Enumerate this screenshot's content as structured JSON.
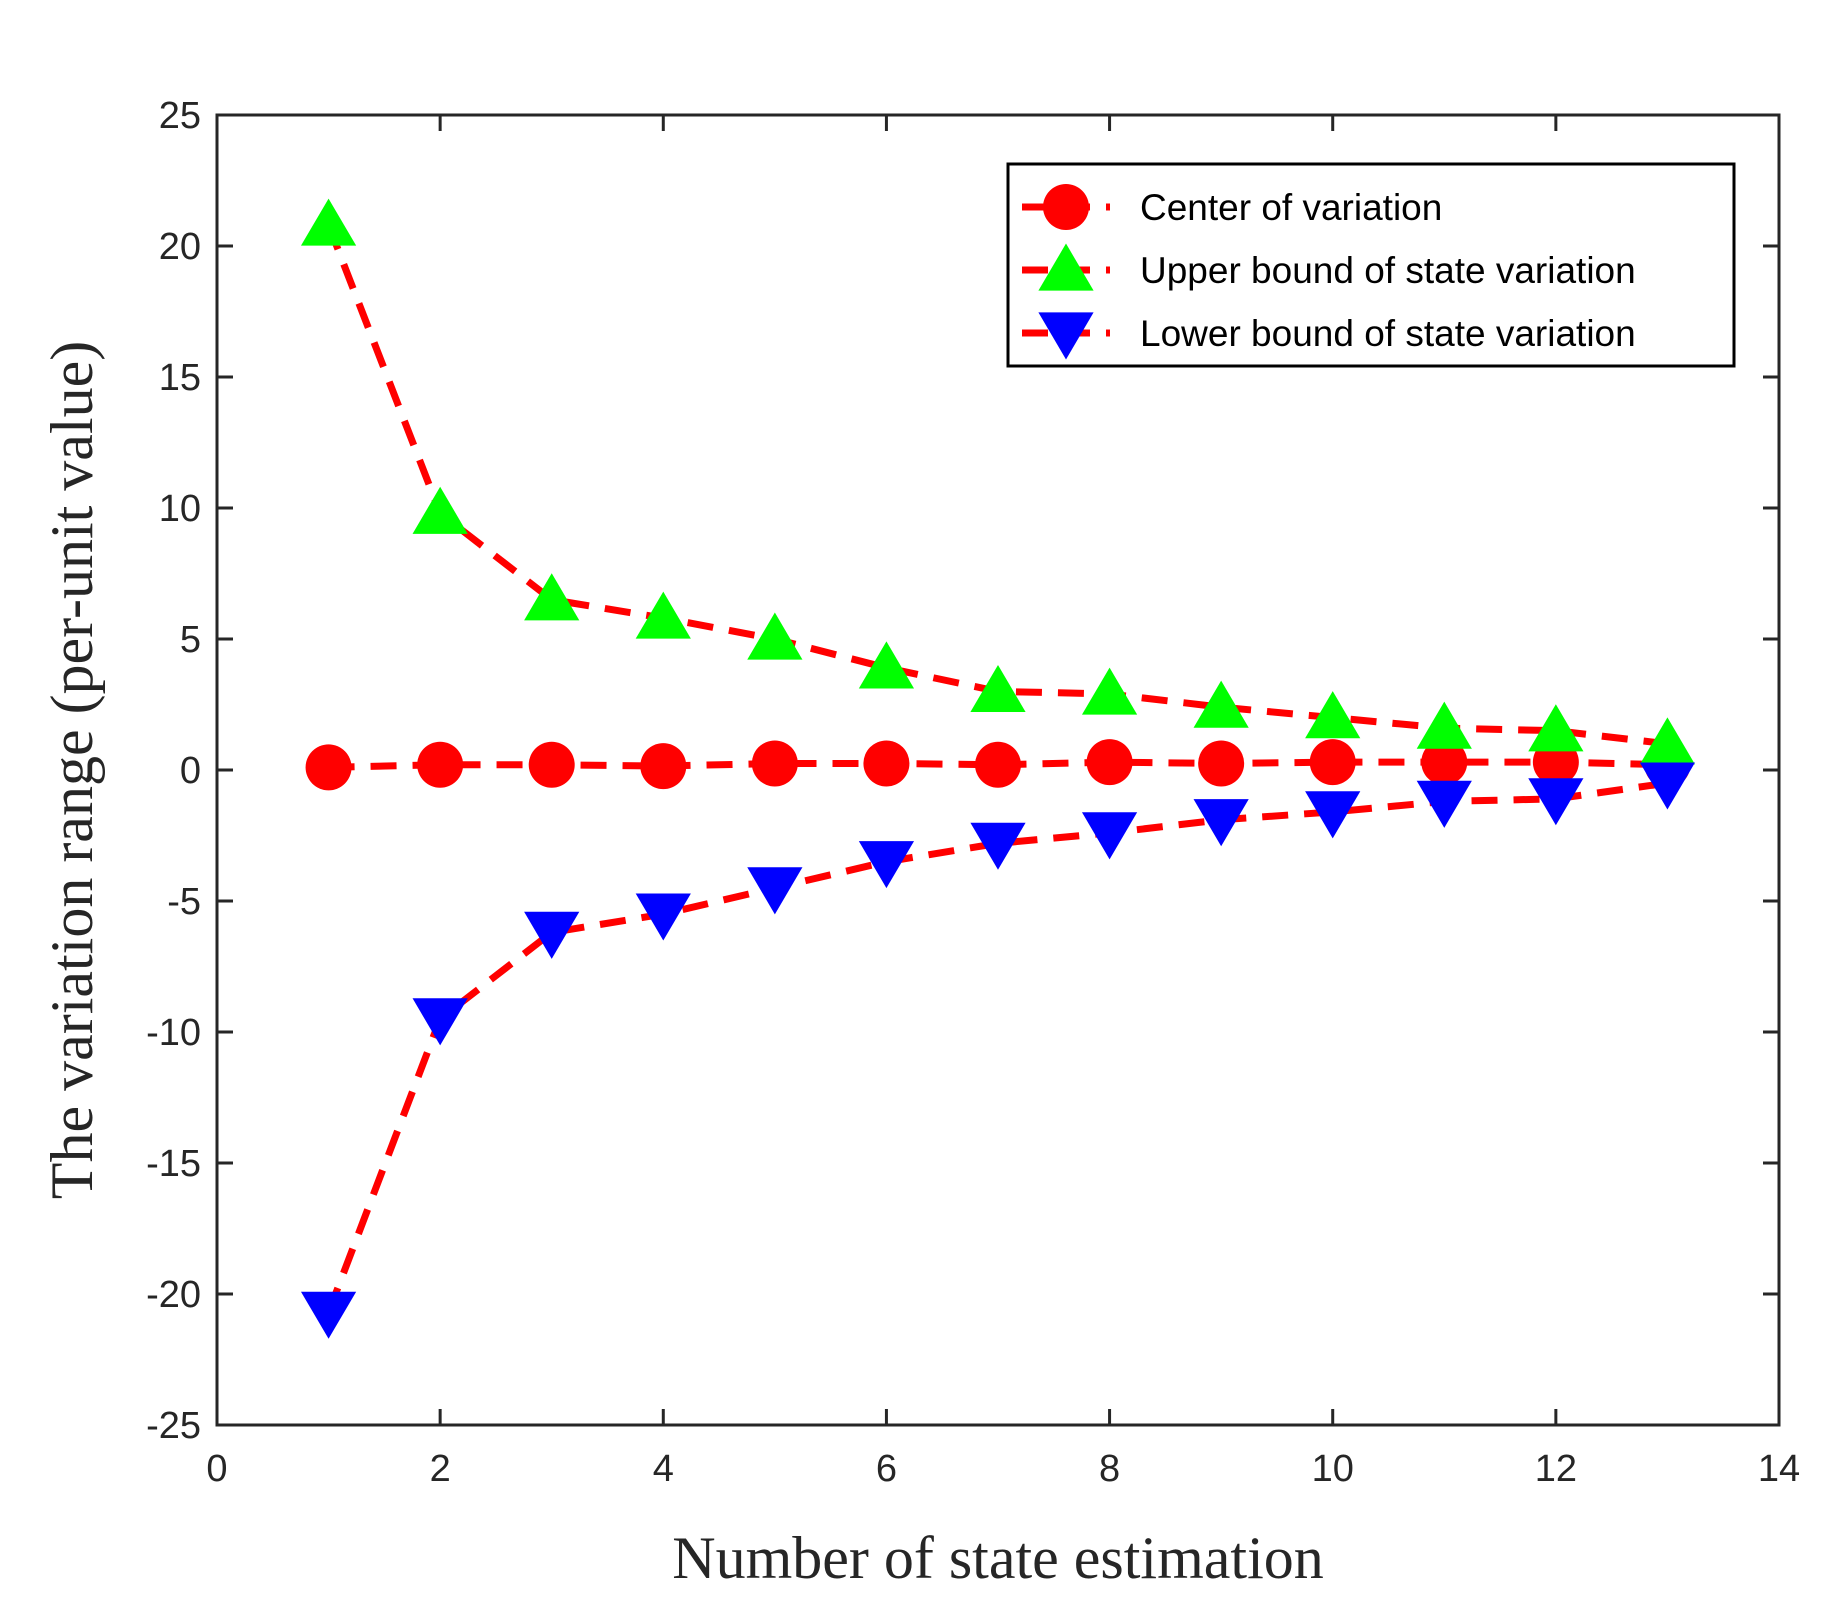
{
  "chart_data": {
    "type": "line",
    "title": "",
    "xlabel": "Number of state estimation",
    "ylabel": "The variation range (per-unit value)",
    "xlim": [
      0,
      14
    ],
    "ylim": [
      -25,
      25
    ],
    "xticks": [
      0,
      2,
      4,
      6,
      8,
      10,
      12,
      14
    ],
    "yticks": [
      -25,
      -20,
      -15,
      -10,
      -5,
      0,
      5,
      10,
      15,
      20,
      25
    ],
    "grid": false,
    "legend_position": "top-right",
    "x": [
      1,
      2,
      3,
      4,
      5,
      6,
      7,
      8,
      9,
      10,
      11,
      12,
      13
    ],
    "series": [
      {
        "name": "Center of variation",
        "marker": "circle",
        "line_color": "#ff0000",
        "marker_color": "#ff0000",
        "line_style": "dashed",
        "values": [
          0.1,
          0.2,
          0.2,
          0.15,
          0.25,
          0.25,
          0.2,
          0.3,
          0.25,
          0.3,
          0.3,
          0.3,
          0.2
        ]
      },
      {
        "name": "Upper bound of state variation",
        "marker": "triangle-up",
        "line_color": "#ff0000",
        "marker_color": "#00ff00",
        "line_style": "dashed",
        "values": [
          20.8,
          9.8,
          6.5,
          5.8,
          5.0,
          3.9,
          3.0,
          2.9,
          2.4,
          2.0,
          1.6,
          1.5,
          1.0
        ]
      },
      {
        "name": "Lower bound of state variation",
        "marker": "triangle-down",
        "line_color": "#ff0000",
        "marker_color": "#0000ff",
        "line_style": "dashed",
        "values": [
          -20.7,
          -9.5,
          -6.2,
          -5.5,
          -4.5,
          -3.5,
          -2.8,
          -2.4,
          -1.9,
          -1.6,
          -1.2,
          -1.1,
          -0.5
        ]
      }
    ]
  }
}
